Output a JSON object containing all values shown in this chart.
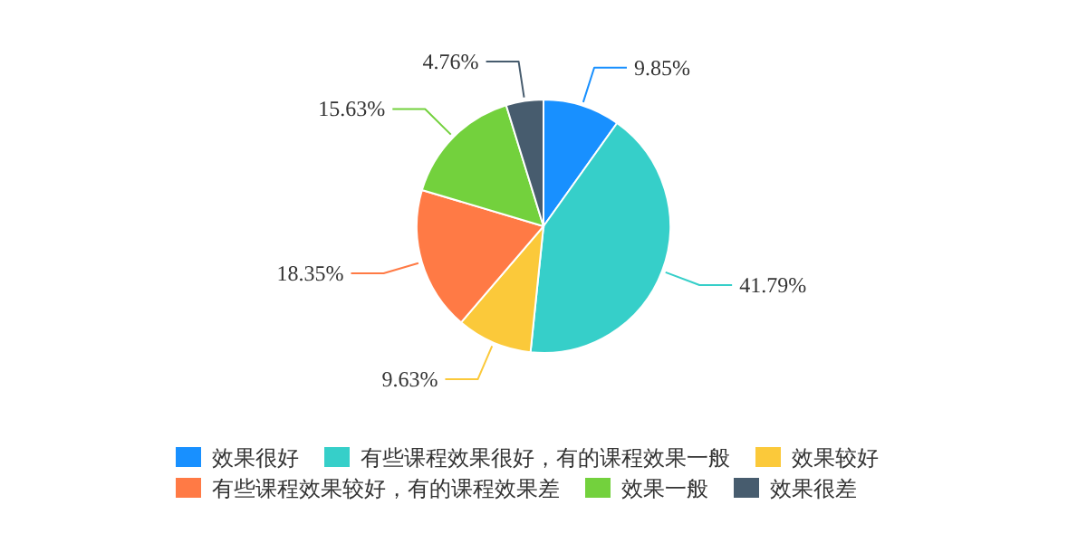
{
  "chart_data": {
    "type": "pie",
    "categories": [
      "效果很好",
      "有些课程效果很好，有的课程效果一般",
      "效果较好",
      "有些课程效果较好，有的课程效果差",
      "效果一般",
      "效果很差"
    ],
    "values": [
      9.85,
      41.79,
      9.63,
      18.35,
      15.63,
      4.76
    ],
    "value_labels": [
      "9.85%",
      "41.79%",
      "9.63%",
      "18.35%",
      "15.63%",
      "4.76%"
    ],
    "colors": [
      "#1890ff",
      "#36cfc9",
      "#fbc93a",
      "#ff7a45",
      "#73d13d",
      "#475c6e"
    ],
    "legend": "bottom"
  }
}
